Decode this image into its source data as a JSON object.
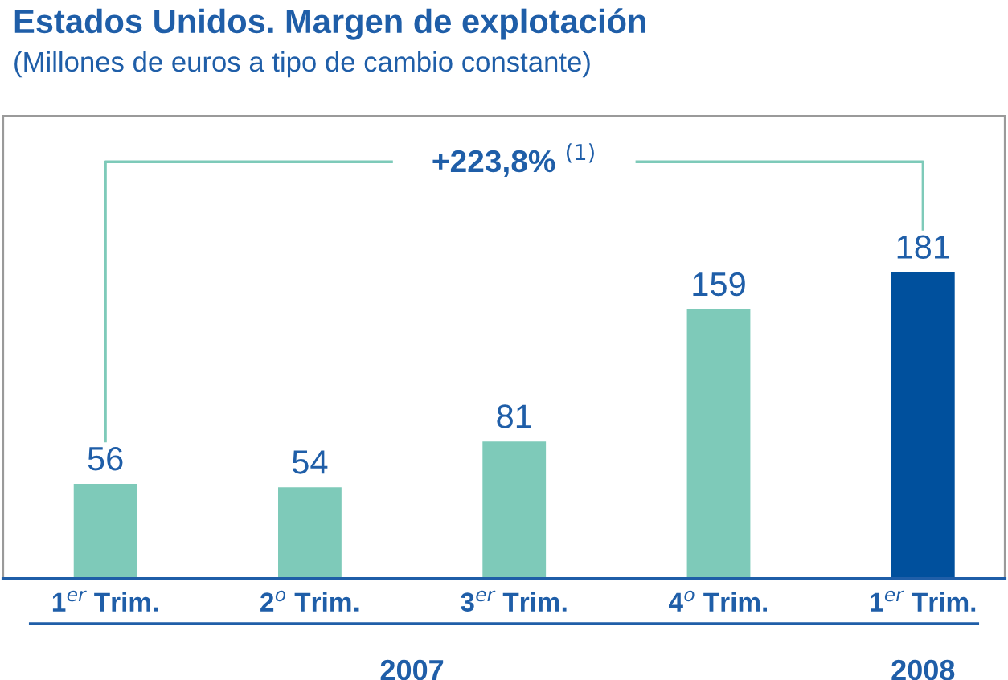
{
  "chart_data": {
    "type": "bar",
    "title": "Estados Unidos. Margen de explotación",
    "subtitle": "(Millones de euros a tipo de cambio constante)",
    "categories": [
      "1$^{er}$ Trim.",
      "2$^{o}$ Trim.",
      "3$^{er}$ Trim.",
      "4$^{o}$ Trim.",
      "1$^{er}$ Trim."
    ],
    "values": [
      56,
      54,
      81,
      159,
      181
    ],
    "colors": [
      "#7ecab9",
      "#7ecab9",
      "#7ecab9",
      "#7ecab9",
      "#00509d"
    ],
    "data_labels": true,
    "annotations": [
      "+223,8% $^{(1)}$",
      "2007",
      "2008"
    ]
  }
}
